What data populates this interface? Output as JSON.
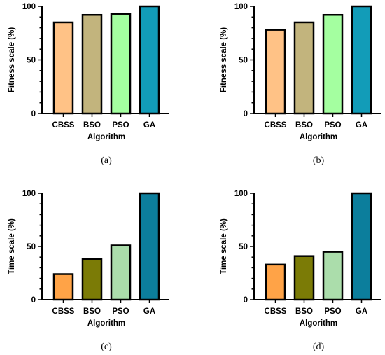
{
  "chart_data": [
    {
      "type": "bar",
      "caption": "(a)",
      "categories": [
        "CBSS",
        "BSO",
        "PSO",
        "GA"
      ],
      "values": [
        85,
        92,
        93,
        100
      ],
      "xlabel": "Algorithm",
      "ylabel": "Fitness scale (%)",
      "ylim": [
        0,
        100
      ],
      "yticks": [
        0,
        50,
        100
      ],
      "colors": [
        "#FFC286",
        "#C2B47D",
        "#A4FFA0",
        "#129CB8"
      ]
    },
    {
      "type": "bar",
      "caption": "(b)",
      "categories": [
        "CBSS",
        "BSO",
        "PSO",
        "GA"
      ],
      "values": [
        78,
        85,
        92,
        100
      ],
      "xlabel": "Algorithm",
      "ylabel": "Fitness scale (%)",
      "ylim": [
        0,
        100
      ],
      "yticks": [
        0,
        50,
        100
      ],
      "colors": [
        "#FFC286",
        "#C2B47D",
        "#A4FFA0",
        "#129CB8"
      ]
    },
    {
      "type": "bar",
      "caption": "(c)",
      "categories": [
        "CBSS",
        "BSO",
        "PSO",
        "GA"
      ],
      "values": [
        24,
        38,
        51,
        100
      ],
      "xlabel": "Algorithm",
      "ylabel": "Time scale (%)",
      "ylim": [
        0,
        100
      ],
      "yticks": [
        0,
        50,
        100
      ],
      "colors": [
        "#FFA347",
        "#7B7B06",
        "#ABDDAB",
        "#0C7E9C"
      ]
    },
    {
      "type": "bar",
      "caption": "(d)",
      "categories": [
        "CBSS",
        "BSO",
        "PSO",
        "GA"
      ],
      "values": [
        33,
        41,
        45,
        100
      ],
      "xlabel": "Algorithm",
      "ylabel": "Time scale (%)",
      "ylim": [
        0,
        100
      ],
      "yticks": [
        0,
        50,
        100
      ],
      "colors": [
        "#FFA347",
        "#7B7B06",
        "#ABDDAB",
        "#0C7E9C"
      ]
    }
  ]
}
